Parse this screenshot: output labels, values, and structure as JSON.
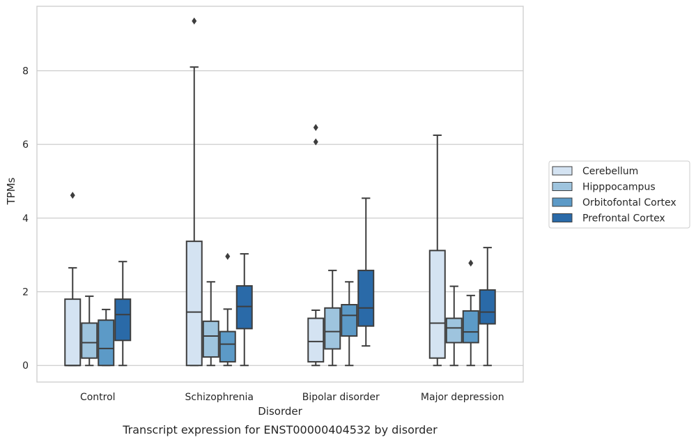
{
  "chart_data": {
    "type": "box",
    "title": "",
    "caption": "Transcript expression for ENST00000404532 by disorder",
    "xlabel": "Disorder",
    "ylabel": "TPMs",
    "ylim": [
      -0.45,
      9.75
    ],
    "yticks": [
      0,
      2,
      4,
      6,
      8
    ],
    "grid": "horizontal",
    "legend_position": "right",
    "categories": [
      "Control",
      "Schizophrenia",
      "Bipolar disorder",
      "Major depression"
    ],
    "series": [
      {
        "name": "Cerebellum",
        "color": "#d4e3f2",
        "boxes": [
          {
            "whisker_low": 0.0,
            "q1": 0.0,
            "median": 0.0,
            "q3": 1.8,
            "whisker_high": 2.65,
            "outliers": [
              4.62
            ]
          },
          {
            "whisker_low": 0.0,
            "q1": 0.0,
            "median": 1.45,
            "q3": 3.37,
            "whisker_high": 8.1,
            "outliers": [
              9.35
            ]
          },
          {
            "whisker_low": 0.0,
            "q1": 0.1,
            "median": 0.65,
            "q3": 1.28,
            "whisker_high": 1.5,
            "outliers": [
              6.07,
              6.46
            ]
          },
          {
            "whisker_low": 0.0,
            "q1": 0.2,
            "median": 1.15,
            "q3": 3.12,
            "whisker_high": 6.25,
            "outliers": []
          }
        ]
      },
      {
        "name": "Hipppocampus",
        "color": "#9ec4de",
        "boxes": [
          {
            "whisker_low": 0.0,
            "q1": 0.2,
            "median": 0.62,
            "q3": 1.15,
            "whisker_high": 1.88,
            "outliers": []
          },
          {
            "whisker_low": 0.0,
            "q1": 0.23,
            "median": 0.8,
            "q3": 1.2,
            "whisker_high": 2.27,
            "outliers": []
          },
          {
            "whisker_low": 0.0,
            "q1": 0.45,
            "median": 0.92,
            "q3": 1.56,
            "whisker_high": 2.58,
            "outliers": []
          },
          {
            "whisker_low": 0.0,
            "q1": 0.62,
            "median": 1.02,
            "q3": 1.28,
            "whisker_high": 2.15,
            "outliers": []
          }
        ]
      },
      {
        "name": "Orbitofontal Cortex",
        "color": "#5c9ac7",
        "boxes": [
          {
            "whisker_low": 0.0,
            "q1": 0.0,
            "median": 0.46,
            "q3": 1.23,
            "whisker_high": 1.52,
            "outliers": []
          },
          {
            "whisker_low": 0.0,
            "q1": 0.1,
            "median": 0.58,
            "q3": 0.92,
            "whisker_high": 1.53,
            "outliers": [
              2.96
            ]
          },
          {
            "whisker_low": 0.0,
            "q1": 0.8,
            "median": 1.36,
            "q3": 1.65,
            "whisker_high": 2.27,
            "outliers": []
          },
          {
            "whisker_low": 0.0,
            "q1": 0.62,
            "median": 0.91,
            "q3": 1.48,
            "whisker_high": 1.9,
            "outliers": [
              2.78
            ]
          }
        ]
      },
      {
        "name": "Prefrontal Cortex",
        "color": "#2a6aa8",
        "boxes": [
          {
            "whisker_low": 0.0,
            "q1": 0.68,
            "median": 1.38,
            "q3": 1.8,
            "whisker_high": 2.82,
            "outliers": []
          },
          {
            "whisker_low": 0.0,
            "q1": 1.0,
            "median": 1.6,
            "q3": 2.16,
            "whisker_high": 3.03,
            "outliers": []
          },
          {
            "whisker_low": 0.53,
            "q1": 1.07,
            "median": 1.56,
            "q3": 2.58,
            "whisker_high": 4.54,
            "outliers": []
          },
          {
            "whisker_low": 0.0,
            "q1": 1.13,
            "median": 1.45,
            "q3": 2.05,
            "whisker_high": 3.2,
            "outliers": []
          }
        ]
      }
    ]
  }
}
